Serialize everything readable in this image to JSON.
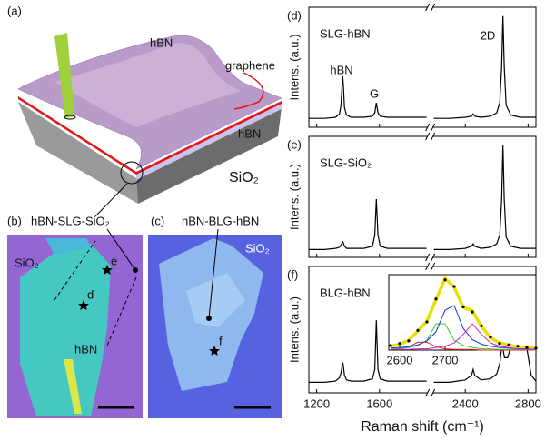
{
  "figure": {
    "panel_a": {
      "label": "(a)",
      "top_layer": "hBN",
      "graphene": "graphene",
      "bottom_layer": "hBN",
      "substrate": "SiO₂"
    },
    "panel_b": {
      "label": "(b)",
      "callout": "hBN-SLG-SiO₂",
      "substrate": "SiO₂",
      "flake": "hBN",
      "points": [
        "e",
        "d"
      ]
    },
    "panel_c": {
      "label": "(c)",
      "callout": "hBN-BLG-hBN",
      "substrate": "SiO₂",
      "points": [
        "f"
      ]
    },
    "x_axis_label": "Raman shift (cm⁻¹)"
  },
  "chart_data": [
    {
      "type": "line",
      "panel_label": "(d)",
      "title": "SLG-hBN",
      "ylabel": "Intens. (a.u.)",
      "annotations": [
        "hBN",
        "G",
        "2D"
      ],
      "xlim": [
        1150,
        2850
      ],
      "x_break": [
        1900,
        2200
      ],
      "xticks": [
        1200,
        1600,
        2400,
        2800
      ],
      "ylim": [
        0,
        1.08
      ],
      "color": "#000000",
      "x": [
        1150,
        1250,
        1320,
        1345,
        1355,
        1362,
        1366,
        1370,
        1377,
        1390,
        1420,
        1500,
        1555,
        1570,
        1580,
        1590,
        1605,
        1650,
        1750,
        1900,
        2050,
        2200,
        2300,
        2400,
        2440,
        2450,
        2460,
        2500,
        2560,
        2600,
        2620,
        2632,
        2640,
        2648,
        2660,
        2690,
        2750,
        2850
      ],
      "values": [
        0.08,
        0.08,
        0.09,
        0.12,
        0.2,
        0.38,
        0.46,
        0.38,
        0.18,
        0.11,
        0.09,
        0.09,
        0.1,
        0.13,
        0.22,
        0.13,
        0.1,
        0.09,
        0.09,
        0.09,
        null,
        0.08,
        0.08,
        0.09,
        0.1,
        0.12,
        0.1,
        0.09,
        0.1,
        0.13,
        0.22,
        0.55,
        1.0,
        0.55,
        0.2,
        0.11,
        0.09,
        0.09
      ]
    },
    {
      "type": "line",
      "panel_label": "(e)",
      "title": "SLG-SiO₂",
      "ylabel": "Intens. (a.u.)",
      "xlim": [
        1150,
        2850
      ],
      "x_break": [
        1900,
        2200
      ],
      "xticks": [
        1200,
        1600,
        2400,
        2800
      ],
      "ylim": [
        0,
        1.08
      ],
      "color": "#000000",
      "x": [
        1150,
        1250,
        1320,
        1345,
        1355,
        1362,
        1366,
        1370,
        1377,
        1390,
        1420,
        1500,
        1555,
        1570,
        1580,
        1590,
        1605,
        1650,
        1750,
        1900,
        2050,
        2200,
        2300,
        2400,
        2440,
        2450,
        2460,
        2500,
        2560,
        2600,
        2620,
        2632,
        2640,
        2648,
        2660,
        2690,
        2750,
        2850
      ],
      "values": [
        0.07,
        0.07,
        0.08,
        0.09,
        0.11,
        0.13,
        0.14,
        0.13,
        0.1,
        0.08,
        0.08,
        0.08,
        0.1,
        0.2,
        0.52,
        0.2,
        0.1,
        0.08,
        0.08,
        0.08,
        null,
        0.07,
        0.07,
        0.08,
        0.1,
        0.12,
        0.1,
        0.08,
        0.09,
        0.12,
        0.2,
        0.52,
        1.0,
        0.52,
        0.18,
        0.1,
        0.08,
        0.08
      ]
    },
    {
      "type": "line",
      "panel_label": "(f)",
      "title": "BLG-hBN",
      "ylabel": "Intens. (a.u.)",
      "xlim": [
        1150,
        2850
      ],
      "x_break": [
        1900,
        2200
      ],
      "xticks": [
        1200,
        1600,
        2400,
        2800
      ],
      "ylim": [
        0,
        1.08
      ],
      "color": "#000000",
      "x": [
        1150,
        1250,
        1320,
        1345,
        1355,
        1362,
        1366,
        1370,
        1377,
        1390,
        1420,
        1500,
        1555,
        1570,
        1580,
        1590,
        1605,
        1650,
        1750,
        1900,
        2050,
        2200,
        2300,
        2400,
        2440,
        2450,
        2460,
        2500,
        2560,
        2600,
        2620,
        2635,
        2650,
        2670,
        2700,
        2730,
        2750,
        2760,
        2770,
        2790,
        2820,
        2850
      ],
      "values": [
        0.09,
        0.09,
        0.1,
        0.13,
        0.17,
        0.23,
        0.26,
        0.23,
        0.15,
        0.11,
        0.1,
        0.1,
        0.12,
        0.2,
        0.62,
        0.2,
        0.12,
        0.1,
        0.1,
        0.1,
        null,
        0.09,
        0.09,
        0.11,
        0.15,
        0.2,
        0.15,
        0.11,
        0.12,
        0.16,
        0.25,
        0.42,
        0.3,
        0.3,
        0.45,
        0.7,
        0.8,
        0.82,
        0.75,
        0.4,
        0.15,
        0.1
      ]
    },
    {
      "type": "inset",
      "xlim": [
        2576,
        2900
      ],
      "xticks": [
        2600,
        2700
      ],
      "ylim": [
        0,
        1.15
      ],
      "x": [
        2580,
        2600,
        2620,
        2640,
        2660,
        2680,
        2700,
        2720,
        2740,
        2760,
        2780,
        2800,
        2820,
        2840,
        2860,
        2880,
        2900
      ],
      "series": [
        {
          "color": "#e8e000",
          "width": 3.5,
          "values": [
            0.06,
            0.09,
            0.15,
            0.29,
            0.44,
            0.77,
            1.09,
            0.96,
            0.65,
            0.6,
            0.36,
            0.19,
            0.11,
            0.08,
            0.05,
            0.04,
            0.03
          ]
        },
        {
          "color": "#e8231f",
          "width": 1,
          "values": [
            0.01,
            0.02,
            0.05,
            0.12,
            0.12,
            0.05,
            0.02,
            0.01,
            0.01,
            0.01,
            0.0,
            0.0,
            0.0,
            0.0,
            0.0,
            0.0,
            0.0
          ]
        },
        {
          "color": "#3cc83c",
          "width": 1,
          "values": [
            0.02,
            0.02,
            0.04,
            0.07,
            0.15,
            0.4,
            0.4,
            0.15,
            0.07,
            0.04,
            0.02,
            0.02,
            0.01,
            0.01,
            0.01,
            0.01,
            0.0
          ]
        },
        {
          "color": "#2233dd",
          "width": 1,
          "values": [
            0.03,
            0.04,
            0.05,
            0.08,
            0.14,
            0.28,
            0.61,
            0.68,
            0.33,
            0.16,
            0.09,
            0.06,
            0.04,
            0.03,
            0.02,
            0.02,
            0.01
          ]
        },
        {
          "color": "#d020d0",
          "width": 1,
          "values": [
            0.01,
            0.01,
            0.01,
            0.02,
            0.02,
            0.04,
            0.06,
            0.11,
            0.24,
            0.4,
            0.24,
            0.11,
            0.06,
            0.04,
            0.02,
            0.02,
            0.01
          ]
        },
        {
          "color": "#000000",
          "marker": "dot",
          "values": [
            0.07,
            0.1,
            0.14,
            0.3,
            0.43,
            0.78,
            1.07,
            0.97,
            0.66,
            0.58,
            0.37,
            0.2,
            0.1,
            0.08,
            0.06,
            0.04,
            0.03
          ]
        }
      ]
    }
  ]
}
